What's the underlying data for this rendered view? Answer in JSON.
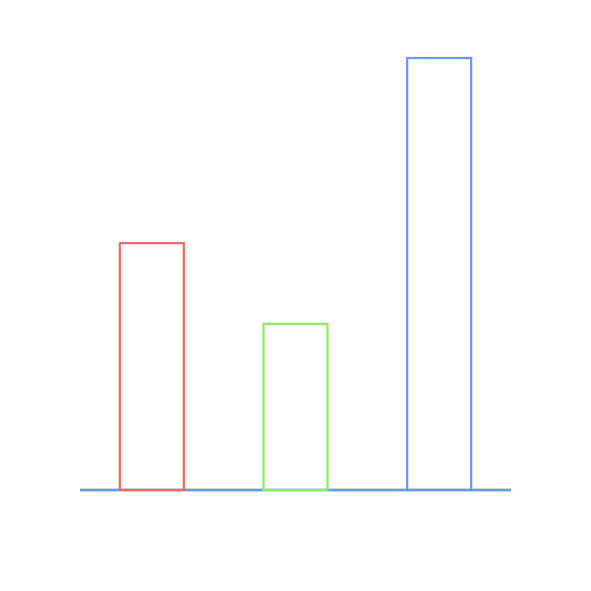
{
  "chart_data": {
    "type": "bar",
    "categories": [
      "",
      "",
      ""
    ],
    "series": [
      {
        "values": [
          5.2,
          0,
          0
        ]
      },
      {
        "values": [
          0,
          3.5,
          0
        ]
      },
      {
        "values": [
          0,
          0,
          9.1
        ]
      }
    ],
    "ylim": [
      0,
      9.1
    ],
    "grid": false,
    "colors": [
      "#ee6666",
      "#88ee66",
      "#6699ee"
    ],
    "baseline_color": "#6699ee",
    "axes_visible": false,
    "legend": "none"
  }
}
